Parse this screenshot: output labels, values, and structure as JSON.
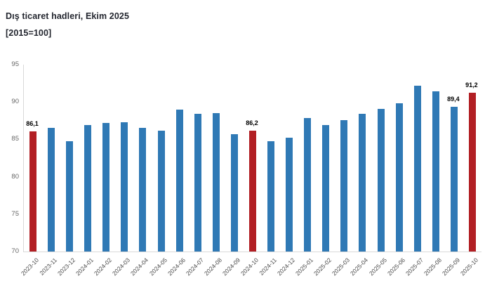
{
  "title": "Dış ticaret hadleri, Ekim 2025",
  "subtitle": "[2015=100]",
  "colors": {
    "bar": "#2f79b5",
    "highlight": "#b21f24",
    "title_text": "#23262f",
    "axis_line": "#d9d9d9",
    "y_tick_label": "#666666",
    "x_tick_label": "#4d4d4d",
    "data_label": "#000000"
  },
  "chart_data": {
    "type": "bar",
    "title": "Dış ticaret hadleri, Ekim 2025",
    "subtitle": "[2015=100]",
    "xlabel": "",
    "ylabel": "",
    "ylim": [
      70,
      95
    ],
    "yticks": [
      95,
      90,
      85,
      80,
      75,
      70
    ],
    "grid": false,
    "legend": false,
    "categories": [
      "2023-10",
      "2023-11",
      "2023-12",
      "2024-01",
      "2024-02",
      "2024-03",
      "2024-04",
      "2024-05",
      "2024-06",
      "2024-07",
      "2024-08",
      "2024-09",
      "2024-10",
      "2024-11",
      "2024-12",
      "2025-01",
      "2025-02",
      "2025-03",
      "2025-04",
      "2025-05",
      "2025-06",
      "2025-07",
      "2025-08",
      "2025-09",
      "2025-10"
    ],
    "values": [
      86.1,
      86.5,
      84.8,
      86.9,
      87.2,
      87.3,
      86.5,
      86.2,
      89.0,
      88.4,
      88.5,
      85.7,
      86.2,
      84.8,
      85.2,
      87.9,
      86.9,
      87.6,
      88.4,
      89.1,
      89.8,
      92.2,
      91.4,
      89.4,
      91.2
    ],
    "highlight_indices": [
      0,
      12,
      24
    ],
    "point_labels": {
      "0": "86,1",
      "12": "86,2",
      "23": "89,4",
      "24": "91,2"
    }
  }
}
